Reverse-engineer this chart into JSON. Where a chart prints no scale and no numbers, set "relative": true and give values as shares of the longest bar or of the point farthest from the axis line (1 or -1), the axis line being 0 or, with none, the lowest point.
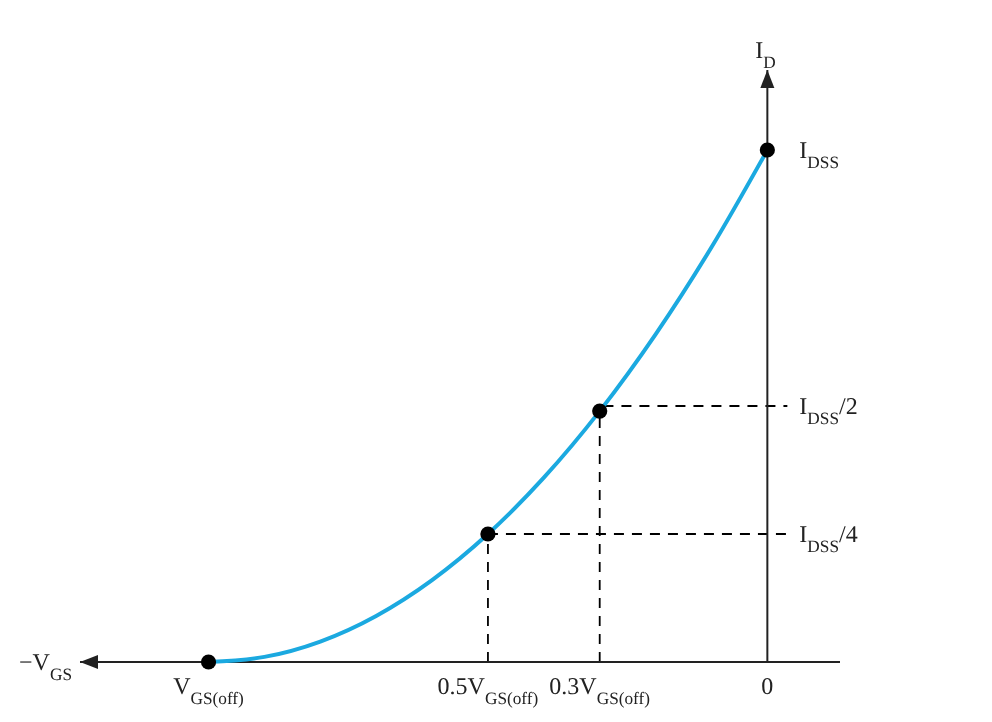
{
  "chart_data": {
    "type": "line",
    "xlabel": "−V$_{GS}$",
    "ylabel": "I$_{D}$",
    "relative": true,
    "x": [
      -1,
      -0.9,
      -0.8,
      -0.7,
      -0.6,
      -0.5,
      -0.4,
      -0.3,
      -0.2,
      -0.1,
      0
    ],
    "series": [
      {
        "color": "#1ba9e0",
        "values": [
          0,
          0.01,
          0.04,
          0.09,
          0.16,
          0.25,
          0.36,
          0.49,
          0.64,
          0.81,
          1
        ]
      },
      {
        "type": "scatter",
        "color": "#000000",
        "marker": "circle",
        "x": [
          -1,
          -0.5,
          -0.3,
          0
        ],
        "values": [
          0,
          0.25,
          0.49,
          1
        ]
      }
    ],
    "xlim": [
      -1.23,
      0.13
    ],
    "xticks": [
      {
        "value": -1,
        "label": "V$_{GS(off)}$"
      },
      {
        "value": -0.5,
        "label": "0.5V$_{GS(off)}$"
      },
      {
        "value": -0.3,
        "label": "0.3V$_{GS(off)}$"
      },
      {
        "value": 0,
        "label": "0"
      }
    ],
    "annotations": [
      "I$_{DSS}$"
    ],
    "ref_lines": [
      {
        "axis": "x",
        "value": -0.5,
        "color": "#000000",
        "line_style": "dashed"
      },
      {
        "axis": "x",
        "value": -0.3,
        "color": "#000000",
        "line_style": "dashed"
      },
      {
        "axis": "y",
        "value": 0.25,
        "color": "#000000",
        "line_style": "dashed",
        "label": "I$_{DSS}$/4"
      },
      {
        "axis": "y",
        "value": 0.5,
        "color": "#000000",
        "line_style": "dashed",
        "label": "I$_{DSS}$/2"
      }
    ]
  }
}
